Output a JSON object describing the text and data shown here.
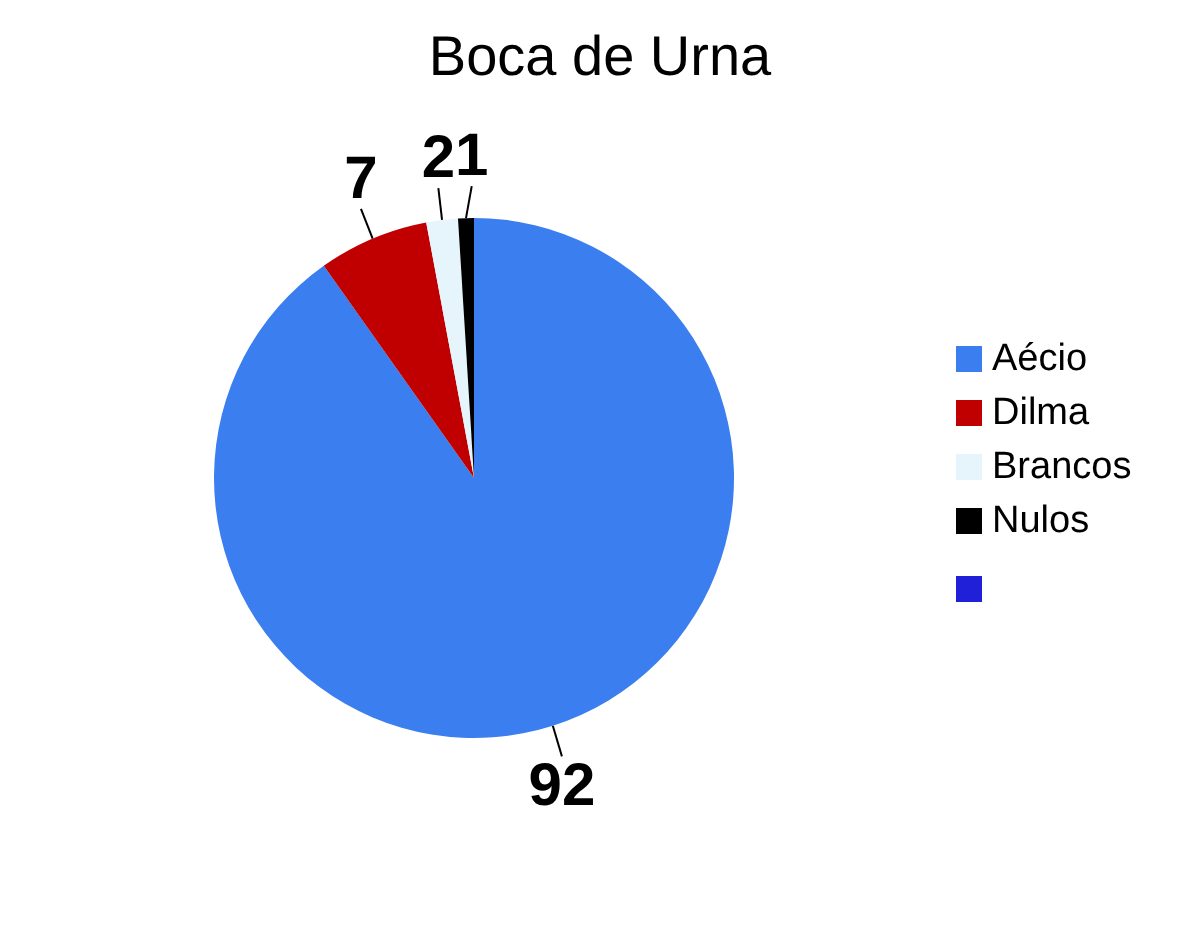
{
  "chart_data": {
    "type": "pie",
    "title": "Boca de Urna",
    "categories": [
      "Aécio",
      "Dilma",
      "Brancos",
      "Nulos"
    ],
    "values": [
      92,
      7,
      2,
      1
    ],
    "colors": [
      "#3a7ef0",
      "#c00000",
      "#e6f4fb",
      "#000000"
    ],
    "data_labels": true,
    "legend": "right"
  }
}
